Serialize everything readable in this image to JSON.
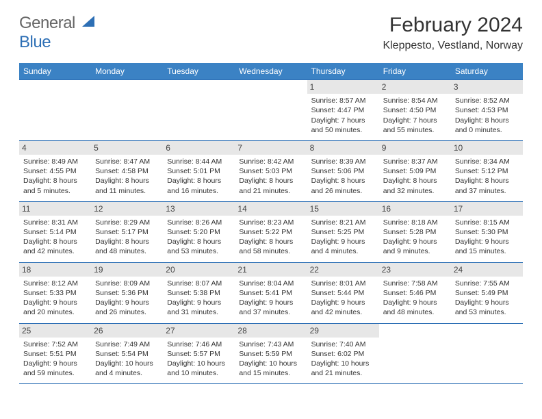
{
  "logo": {
    "line1": "General",
    "line2": "Blue"
  },
  "title": "February 2024",
  "location": "Kleppesto, Vestland, Norway",
  "colors": {
    "header_bg": "#3b82c4",
    "rule": "#2d6fb5",
    "daynum_bg": "#e7e7e7",
    "page_bg": "#ffffff"
  },
  "font": {
    "body_size_pt": 8,
    "title_size_pt": 22,
    "location_size_pt": 12
  },
  "days_of_week": [
    "Sunday",
    "Monday",
    "Tuesday",
    "Wednesday",
    "Thursday",
    "Friday",
    "Saturday"
  ],
  "weeks": [
    [
      null,
      null,
      null,
      null,
      {
        "n": "1",
        "sr": "Sunrise: 8:57 AM",
        "ss": "Sunset: 4:47 PM",
        "d1": "Daylight: 7 hours",
        "d2": "and 50 minutes."
      },
      {
        "n": "2",
        "sr": "Sunrise: 8:54 AM",
        "ss": "Sunset: 4:50 PM",
        "d1": "Daylight: 7 hours",
        "d2": "and 55 minutes."
      },
      {
        "n": "3",
        "sr": "Sunrise: 8:52 AM",
        "ss": "Sunset: 4:53 PM",
        "d1": "Daylight: 8 hours",
        "d2": "and 0 minutes."
      }
    ],
    [
      {
        "n": "4",
        "sr": "Sunrise: 8:49 AM",
        "ss": "Sunset: 4:55 PM",
        "d1": "Daylight: 8 hours",
        "d2": "and 5 minutes."
      },
      {
        "n": "5",
        "sr": "Sunrise: 8:47 AM",
        "ss": "Sunset: 4:58 PM",
        "d1": "Daylight: 8 hours",
        "d2": "and 11 minutes."
      },
      {
        "n": "6",
        "sr": "Sunrise: 8:44 AM",
        "ss": "Sunset: 5:01 PM",
        "d1": "Daylight: 8 hours",
        "d2": "and 16 minutes."
      },
      {
        "n": "7",
        "sr": "Sunrise: 8:42 AM",
        "ss": "Sunset: 5:03 PM",
        "d1": "Daylight: 8 hours",
        "d2": "and 21 minutes."
      },
      {
        "n": "8",
        "sr": "Sunrise: 8:39 AM",
        "ss": "Sunset: 5:06 PM",
        "d1": "Daylight: 8 hours",
        "d2": "and 26 minutes."
      },
      {
        "n": "9",
        "sr": "Sunrise: 8:37 AM",
        "ss": "Sunset: 5:09 PM",
        "d1": "Daylight: 8 hours",
        "d2": "and 32 minutes."
      },
      {
        "n": "10",
        "sr": "Sunrise: 8:34 AM",
        "ss": "Sunset: 5:12 PM",
        "d1": "Daylight: 8 hours",
        "d2": "and 37 minutes."
      }
    ],
    [
      {
        "n": "11",
        "sr": "Sunrise: 8:31 AM",
        "ss": "Sunset: 5:14 PM",
        "d1": "Daylight: 8 hours",
        "d2": "and 42 minutes."
      },
      {
        "n": "12",
        "sr": "Sunrise: 8:29 AM",
        "ss": "Sunset: 5:17 PM",
        "d1": "Daylight: 8 hours",
        "d2": "and 48 minutes."
      },
      {
        "n": "13",
        "sr": "Sunrise: 8:26 AM",
        "ss": "Sunset: 5:20 PM",
        "d1": "Daylight: 8 hours",
        "d2": "and 53 minutes."
      },
      {
        "n": "14",
        "sr": "Sunrise: 8:23 AM",
        "ss": "Sunset: 5:22 PM",
        "d1": "Daylight: 8 hours",
        "d2": "and 58 minutes."
      },
      {
        "n": "15",
        "sr": "Sunrise: 8:21 AM",
        "ss": "Sunset: 5:25 PM",
        "d1": "Daylight: 9 hours",
        "d2": "and 4 minutes."
      },
      {
        "n": "16",
        "sr": "Sunrise: 8:18 AM",
        "ss": "Sunset: 5:28 PM",
        "d1": "Daylight: 9 hours",
        "d2": "and 9 minutes."
      },
      {
        "n": "17",
        "sr": "Sunrise: 8:15 AM",
        "ss": "Sunset: 5:30 PM",
        "d1": "Daylight: 9 hours",
        "d2": "and 15 minutes."
      }
    ],
    [
      {
        "n": "18",
        "sr": "Sunrise: 8:12 AM",
        "ss": "Sunset: 5:33 PM",
        "d1": "Daylight: 9 hours",
        "d2": "and 20 minutes."
      },
      {
        "n": "19",
        "sr": "Sunrise: 8:09 AM",
        "ss": "Sunset: 5:36 PM",
        "d1": "Daylight: 9 hours",
        "d2": "and 26 minutes."
      },
      {
        "n": "20",
        "sr": "Sunrise: 8:07 AM",
        "ss": "Sunset: 5:38 PM",
        "d1": "Daylight: 9 hours",
        "d2": "and 31 minutes."
      },
      {
        "n": "21",
        "sr": "Sunrise: 8:04 AM",
        "ss": "Sunset: 5:41 PM",
        "d1": "Daylight: 9 hours",
        "d2": "and 37 minutes."
      },
      {
        "n": "22",
        "sr": "Sunrise: 8:01 AM",
        "ss": "Sunset: 5:44 PM",
        "d1": "Daylight: 9 hours",
        "d2": "and 42 minutes."
      },
      {
        "n": "23",
        "sr": "Sunrise: 7:58 AM",
        "ss": "Sunset: 5:46 PM",
        "d1": "Daylight: 9 hours",
        "d2": "and 48 minutes."
      },
      {
        "n": "24",
        "sr": "Sunrise: 7:55 AM",
        "ss": "Sunset: 5:49 PM",
        "d1": "Daylight: 9 hours",
        "d2": "and 53 minutes."
      }
    ],
    [
      {
        "n": "25",
        "sr": "Sunrise: 7:52 AM",
        "ss": "Sunset: 5:51 PM",
        "d1": "Daylight: 9 hours",
        "d2": "and 59 minutes."
      },
      {
        "n": "26",
        "sr": "Sunrise: 7:49 AM",
        "ss": "Sunset: 5:54 PM",
        "d1": "Daylight: 10 hours",
        "d2": "and 4 minutes."
      },
      {
        "n": "27",
        "sr": "Sunrise: 7:46 AM",
        "ss": "Sunset: 5:57 PM",
        "d1": "Daylight: 10 hours",
        "d2": "and 10 minutes."
      },
      {
        "n": "28",
        "sr": "Sunrise: 7:43 AM",
        "ss": "Sunset: 5:59 PM",
        "d1": "Daylight: 10 hours",
        "d2": "and 15 minutes."
      },
      {
        "n": "29",
        "sr": "Sunrise: 7:40 AM",
        "ss": "Sunset: 6:02 PM",
        "d1": "Daylight: 10 hours",
        "d2": "and 21 minutes."
      },
      null,
      null
    ]
  ]
}
